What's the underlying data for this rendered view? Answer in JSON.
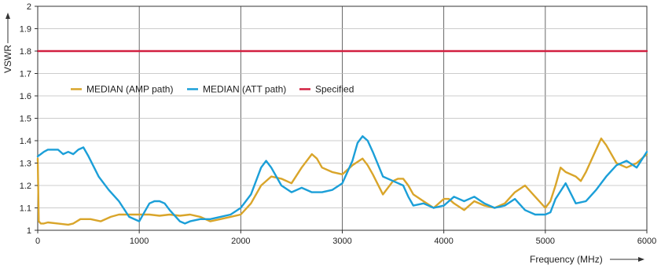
{
  "chart_data": {
    "type": "line",
    "xlabel": "Frequency (MHz)",
    "ylabel": "VSWR",
    "xlim": [
      0,
      6000
    ],
    "ylim": [
      1,
      2
    ],
    "x_ticks": [
      0,
      1000,
      2000,
      3000,
      4000,
      5000,
      6000
    ],
    "y_ticks": [
      1,
      1.1,
      1.2,
      1.3,
      1.4,
      1.5,
      1.6,
      1.7,
      1.8,
      1.9,
      2
    ],
    "grid": true,
    "legend": "upper-left inside plot",
    "series": [
      {
        "name": "MEDIAN (AMP path)",
        "color": "#d9a52a",
        "x": [
          0,
          10,
          30,
          60,
          100,
          200,
          300,
          350,
          420,
          520,
          620,
          720,
          800,
          900,
          1000,
          1100,
          1200,
          1300,
          1400,
          1500,
          1600,
          1700,
          1800,
          1900,
          2000,
          2100,
          2200,
          2300,
          2400,
          2500,
          2600,
          2700,
          2750,
          2800,
          2900,
          3000,
          3100,
          3200,
          3250,
          3300,
          3400,
          3500,
          3550,
          3600,
          3650,
          3700,
          3800,
          3900,
          4000,
          4050,
          4100,
          4200,
          4300,
          4400,
          4500,
          4600,
          4700,
          4800,
          4900,
          5000,
          5050,
          5100,
          5150,
          5200,
          5300,
          5350,
          5400,
          5500,
          5550,
          5600,
          5700,
          5800,
          5900,
          6000
        ],
        "values": [
          1.32,
          1.04,
          1.03,
          1.03,
          1.035,
          1.03,
          1.025,
          1.03,
          1.05,
          1.05,
          1.04,
          1.06,
          1.07,
          1.07,
          1.07,
          1.07,
          1.065,
          1.07,
          1.065,
          1.07,
          1.06,
          1.04,
          1.05,
          1.06,
          1.07,
          1.12,
          1.2,
          1.24,
          1.23,
          1.21,
          1.28,
          1.34,
          1.32,
          1.28,
          1.26,
          1.25,
          1.29,
          1.32,
          1.29,
          1.25,
          1.16,
          1.22,
          1.23,
          1.23,
          1.2,
          1.16,
          1.13,
          1.1,
          1.14,
          1.14,
          1.12,
          1.09,
          1.13,
          1.11,
          1.1,
          1.12,
          1.17,
          1.2,
          1.15,
          1.1,
          1.13,
          1.2,
          1.28,
          1.26,
          1.24,
          1.22,
          1.26,
          1.36,
          1.41,
          1.38,
          1.3,
          1.28,
          1.3,
          1.34
        ]
      },
      {
        "name": "MEDIAN (ATT path)",
        "color": "#1b9fd8",
        "x": [
          0,
          30,
          60,
          100,
          150,
          200,
          250,
          300,
          350,
          400,
          450,
          500,
          600,
          700,
          800,
          900,
          1000,
          1050,
          1100,
          1150,
          1200,
          1250,
          1300,
          1400,
          1450,
          1500,
          1600,
          1700,
          1800,
          1900,
          2000,
          2100,
          2200,
          2250,
          2300,
          2400,
          2500,
          2600,
          2700,
          2800,
          2900,
          3000,
          3100,
          3150,
          3200,
          3250,
          3300,
          3400,
          3500,
          3600,
          3650,
          3700,
          3800,
          3900,
          4000,
          4100,
          4200,
          4300,
          4400,
          4500,
          4600,
          4700,
          4800,
          4900,
          5000,
          5050,
          5100,
          5200,
          5300,
          5400,
          5500,
          5600,
          5700,
          5800,
          5900,
          6000
        ],
        "values": [
          1.33,
          1.34,
          1.35,
          1.36,
          1.36,
          1.36,
          1.34,
          1.35,
          1.34,
          1.36,
          1.37,
          1.33,
          1.24,
          1.18,
          1.13,
          1.06,
          1.04,
          1.08,
          1.12,
          1.13,
          1.13,
          1.12,
          1.09,
          1.04,
          1.03,
          1.04,
          1.05,
          1.05,
          1.06,
          1.07,
          1.1,
          1.16,
          1.28,
          1.31,
          1.28,
          1.2,
          1.17,
          1.19,
          1.17,
          1.17,
          1.18,
          1.21,
          1.31,
          1.39,
          1.42,
          1.4,
          1.35,
          1.24,
          1.22,
          1.2,
          1.15,
          1.11,
          1.12,
          1.1,
          1.11,
          1.15,
          1.13,
          1.15,
          1.12,
          1.1,
          1.11,
          1.14,
          1.09,
          1.07,
          1.07,
          1.08,
          1.14,
          1.21,
          1.12,
          1.13,
          1.18,
          1.24,
          1.29,
          1.31,
          1.28,
          1.35
        ]
      },
      {
        "name": "Specified",
        "color": "#d22040",
        "x": [
          0,
          6000
        ],
        "values": [
          1.8,
          1.8
        ]
      }
    ]
  }
}
